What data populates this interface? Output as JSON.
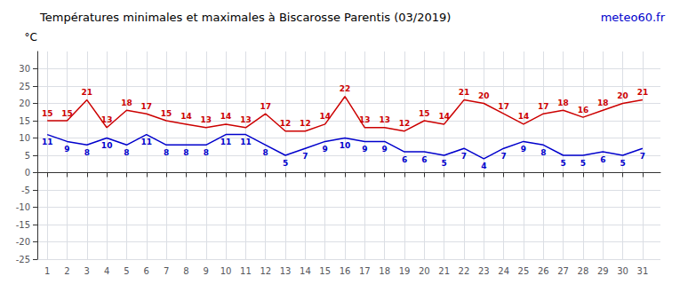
{
  "chart_data": {
    "type": "line",
    "title": "Températures minimales et maximales à Biscarosse Parentis (03/2019)",
    "ylabel": "°C",
    "annotations": [
      {
        "text": "meteo60.fr",
        "color": "#0000cc"
      }
    ],
    "x": [
      1,
      2,
      3,
      4,
      5,
      6,
      7,
      8,
      9,
      10,
      11,
      12,
      13,
      14,
      15,
      16,
      17,
      18,
      19,
      20,
      21,
      22,
      23,
      24,
      25,
      26,
      27,
      28,
      29,
      30,
      31
    ],
    "series": [
      {
        "color": "#0000cc",
        "values": [
          11,
          9,
          8,
          10,
          8,
          11,
          8,
          8,
          8,
          11,
          11,
          8,
          5,
          7,
          9,
          10,
          9,
          9,
          6,
          6,
          5,
          7,
          4,
          7,
          9,
          8,
          5,
          5,
          6,
          5,
          7
        ]
      },
      {
        "color": "#cc0000",
        "values": [
          15,
          15,
          21,
          13,
          18,
          17,
          15,
          14,
          13,
          14,
          13,
          17,
          12,
          12,
          14,
          22,
          13,
          13,
          12,
          15,
          14,
          21,
          20,
          17,
          14,
          17,
          18,
          16,
          18,
          20,
          21
        ]
      }
    ],
    "xlim": [
      0.5,
      31.9
    ],
    "xticks": [
      1,
      2,
      3,
      4,
      5,
      6,
      7,
      8,
      9,
      10,
      11,
      12,
      13,
      14,
      15,
      16,
      17,
      18,
      19,
      20,
      21,
      22,
      23,
      24,
      25,
      26,
      27,
      28,
      29,
      30,
      31
    ],
    "ylim": [
      -25,
      35
    ],
    "yticks": [
      -25,
      -20,
      -15,
      -10,
      -5,
      0,
      5,
      10,
      15,
      20,
      25,
      30
    ],
    "grid": true,
    "data_labels": true
  }
}
